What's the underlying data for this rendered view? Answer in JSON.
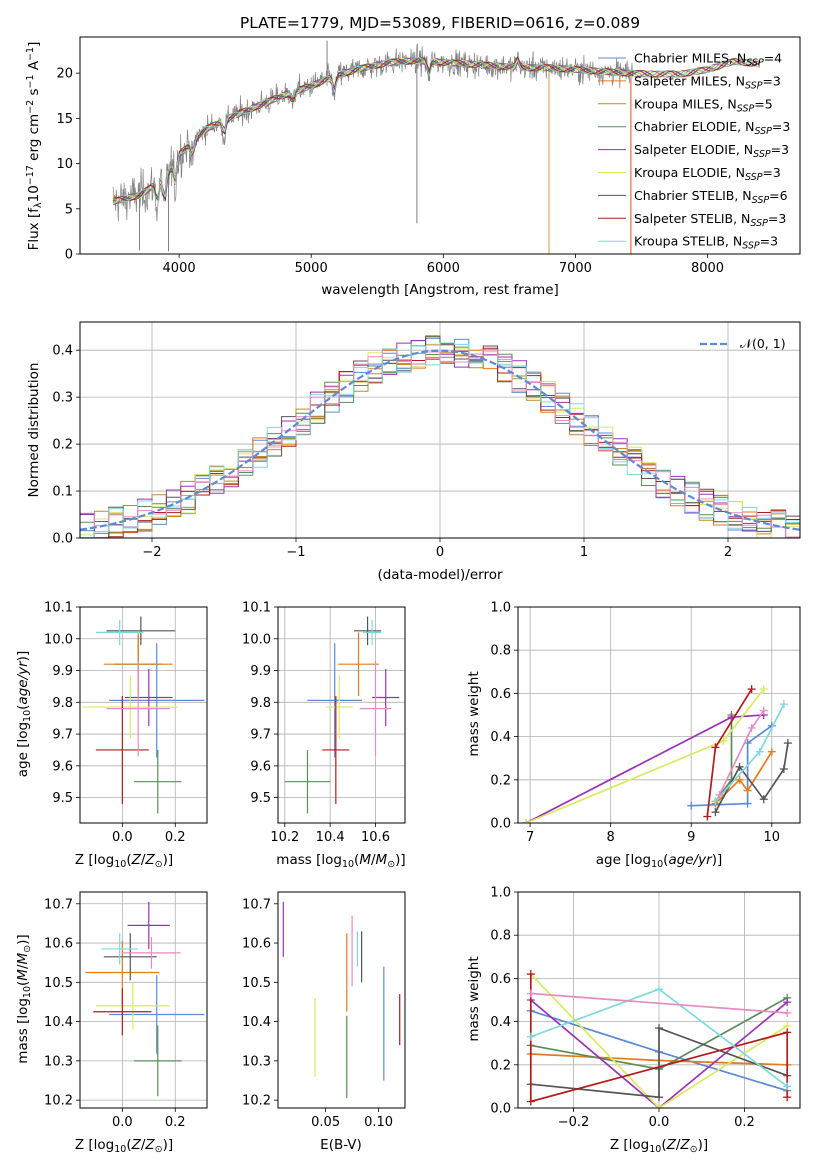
{
  "colors": {
    "Chabrier MILES": "#5b8bd6",
    "Salpeter MILES": "#e37b1a",
    "Kroupa MILES": "#bb8a2a",
    "Chabrier ELODIE": "#5a8d5a",
    "Salpeter ELODIE": "#9b31b8",
    "Kroupa ELODIE": "#d9ea62",
    "Chabrier STELIB": "#555555",
    "Salpeter STELIB": "#b31b1b",
    "Kroupa STELIB": "#7fd8de",
    "observed": "#808080",
    "normal": "#5b8bd6"
  },
  "chart_data": [
    {
      "id": "spectrum",
      "type": "line",
      "title": "PLATE=1779, MJD=53089, FIBERID=0616, z=0.089",
      "xlabel": "wavelength [Angstrom, rest frame]",
      "ylabel": "Flux [f_λ 10^-17 erg cm^-2 s^-1 A^-1]",
      "xlim": [
        3250,
        8700
      ],
      "ylim": [
        0,
        24
      ],
      "xticks": [
        4000,
        5000,
        6000,
        7000,
        8000
      ],
      "yticks": [
        0,
        5,
        10,
        15,
        20
      ],
      "grid": false,
      "legend_position": "right",
      "legend": [
        "Chabrier MILES, N_SSP=4",
        "Salpeter MILES, N_SSP=3",
        "Kroupa MILES, N_SSP=5",
        "Chabrier ELODIE, N_SSP=3",
        "Salpeter ELODIE, N_SSP=3",
        "Kroupa ELODIE, N_SSP=3",
        "Chabrier STELIB, N_SSP=6",
        "Salpeter STELIB, N_SSP=3",
        "Kroupa STELIB, N_SSP=3"
      ],
      "continuum": {
        "x": [
          3500,
          3700,
          3900,
          4000,
          4200,
          4400,
          4600,
          4800,
          5000,
          5200,
          5400,
          5600,
          5800,
          6000,
          6200,
          6400,
          6600,
          6800,
          7000,
          7200,
          7400,
          7600,
          7800,
          8000,
          8200,
          8400
        ],
        "y": [
          5.8,
          6.5,
          8.5,
          11.0,
          13.8,
          15.2,
          16.4,
          17.6,
          18.6,
          19.8,
          20.6,
          21.2,
          21.4,
          21.2,
          21.0,
          20.8,
          20.6,
          20.6,
          20.4,
          20.2,
          20.0,
          19.9,
          19.9,
          20.4,
          21.3,
          21.0
        ]
      },
      "spikes": [
        {
          "x": 5120,
          "y": 23.6
        },
        {
          "x": 5800,
          "y": 3.4
        },
        {
          "x": 6800,
          "y": 0.0
        },
        {
          "x": 7420,
          "y": 0.0
        },
        {
          "x": 3700,
          "y": 0.4
        },
        {
          "x": 3920,
          "y": 0.3
        }
      ]
    },
    {
      "id": "residuals",
      "type": "histogram",
      "xlabel": "(data-model)/error",
      "ylabel": "Normed distribution",
      "xlim": [
        -2.5,
        2.5
      ],
      "ylim": [
        0,
        0.46
      ],
      "xticks": [
        -2,
        -1,
        0,
        1,
        2
      ],
      "yticks": [
        0.0,
        0.1,
        0.2,
        0.3,
        0.4
      ],
      "grid": true,
      "legend_position": "top-right",
      "legend": [
        "N(0,1)"
      ],
      "bin_width": 0.1
    },
    {
      "id": "age_vs_Z",
      "type": "errorbar",
      "xlabel": "Z [log10(Z/Z☉)]",
      "ylabel": "age [log10(age/yr)]",
      "xlim": [
        -0.16,
        0.32
      ],
      "ylim": [
        9.42,
        10.1
      ],
      "xticks": [
        0.0,
        0.2
      ],
      "yticks": [
        9.5,
        9.6,
        9.7,
        9.8,
        9.9,
        10.0,
        10.1
      ],
      "grid": true,
      "points": [
        {
          "series": "Chabrier MILES",
          "x": 0.13,
          "xerr": 0.18,
          "y": 9.806,
          "yerr": 0.18
        },
        {
          "series": "Salpeter MILES",
          "x": 0.06,
          "xerr": 0.13,
          "y": 9.92,
          "yerr": 0.1
        },
        {
          "series": "Kroupa MILES",
          "x": 0.06,
          "xerr": 0.09,
          "y": 9.92,
          "yerr": 0.09
        },
        {
          "series": "Chabrier ELODIE",
          "x": 0.134,
          "xerr": 0.09,
          "y": 9.55,
          "yerr": 0.1
        },
        {
          "series": "Salpeter ELODIE",
          "x": 0.1,
          "xerr": 0.09,
          "y": 9.815,
          "yerr": 0.09
        },
        {
          "series": "Kroupa ELODIE",
          "x": 0.03,
          "xerr": 0.18,
          "y": 9.785,
          "yerr": 0.1
        },
        {
          "series": "Chabrier STELIB",
          "x": 0.07,
          "xerr": 0.13,
          "y": 10.025,
          "yerr": 0.045
        },
        {
          "series": "Salpeter STELIB",
          "x": 0.0,
          "xerr": 0.1,
          "y": 9.65,
          "yerr": 0.17
        },
        {
          "series": "Kroupa STELIB",
          "x": -0.01,
          "xerr": 0.09,
          "y": 10.02,
          "yerr": 0.04
        },
        {
          "series": "pink",
          "x": 0.06,
          "xerr": 0.12,
          "y": 9.78,
          "yerr": 0.15
        }
      ]
    },
    {
      "id": "age_vs_mass",
      "type": "errorbar",
      "xlabel": "mass [log10(M/M☉)]",
      "ylabel": "",
      "xlim": [
        10.17,
        10.73
      ],
      "ylim": [
        9.42,
        10.1
      ],
      "xticks": [
        10.2,
        10.4,
        10.6
      ],
      "yticks": [
        9.5,
        9.6,
        9.7,
        9.8,
        9.9,
        10.0,
        10.1
      ],
      "grid": true,
      "points": [
        {
          "series": "Chabrier MILES",
          "x": 10.42,
          "xerr": 0.12,
          "y": 9.806,
          "yerr": 0.18
        },
        {
          "series": "Salpeter MILES",
          "x": 10.525,
          "xerr": 0.09,
          "y": 9.92,
          "yerr": 0.1
        },
        {
          "series": "Chabrier ELODIE",
          "x": 10.3,
          "xerr": 0.1,
          "y": 9.55,
          "yerr": 0.1
        },
        {
          "series": "Salpeter ELODIE",
          "x": 10.645,
          "xerr": 0.06,
          "y": 9.815,
          "yerr": 0.09
        },
        {
          "series": "Kroupa ELODIE",
          "x": 10.44,
          "xerr": 0.06,
          "y": 9.785,
          "yerr": 0.1
        },
        {
          "series": "Chabrier STELIB",
          "x": 10.565,
          "xerr": 0.06,
          "y": 10.025,
          "yerr": 0.045
        },
        {
          "series": "Salpeter STELIB",
          "x": 10.425,
          "xerr": 0.06,
          "y": 9.65,
          "yerr": 0.17
        },
        {
          "series": "Kroupa STELIB",
          "x": 10.585,
          "xerr": 0.04,
          "y": 10.02,
          "yerr": 0.04
        },
        {
          "series": "pink",
          "x": 10.6,
          "xerr": 0.07,
          "y": 9.78,
          "yerr": 0.15
        }
      ]
    },
    {
      "id": "weight_vs_age",
      "type": "line",
      "xlabel": "age [log10(age/yr)]",
      "ylabel": "mass weight",
      "xlim": [
        6.85,
        10.35
      ],
      "ylim": [
        0,
        1
      ],
      "xticks": [
        7,
        8,
        9,
        10
      ],
      "yticks": [
        0.0,
        0.2,
        0.4,
        0.6,
        0.8,
        1.0
      ],
      "grid": true,
      "series": [
        {
          "name": "Chabrier MILES",
          "x": [
            9.0,
            9.7,
            9.7,
            10.0
          ],
          "y": [
            0.08,
            0.09,
            0.37,
            0.45
          ]
        },
        {
          "name": "Salpeter MILES",
          "x": [
            9.3,
            9.6,
            9.7,
            10.0
          ],
          "y": [
            0.09,
            0.2,
            0.15,
            0.33
          ]
        },
        {
          "name": "Chabrier ELODIE",
          "x": [
            9.3,
            9.5,
            9.5
          ],
          "y": [
            0.1,
            0.2,
            0.5
          ]
        },
        {
          "name": "Salpeter ELODIE",
          "x": [
            6.95,
            9.5,
            9.9
          ],
          "y": [
            0.0,
            0.49,
            0.5
          ]
        },
        {
          "name": "Kroupa ELODIE",
          "x": [
            6.95,
            9.4,
            9.9
          ],
          "y": [
            0.0,
            0.38,
            0.62
          ]
        },
        {
          "name": "Chabrier STELIB",
          "x": [
            9.3,
            9.6,
            9.9,
            10.15,
            10.2
          ],
          "y": [
            0.05,
            0.26,
            0.11,
            0.25,
            0.37
          ]
        },
        {
          "name": "Salpeter STELIB",
          "x": [
            9.2,
            9.3,
            9.75
          ],
          "y": [
            0.03,
            0.35,
            0.62
          ]
        },
        {
          "name": "Kroupa STELIB",
          "x": [
            9.3,
            9.85,
            10.15
          ],
          "y": [
            0.1,
            0.33,
            0.55
          ]
        },
        {
          "name": "pink",
          "x": [
            9.35,
            9.75,
            9.9
          ],
          "y": [
            0.13,
            0.44,
            0.52
          ]
        }
      ]
    },
    {
      "id": "mass_vs_Z",
      "type": "errorbar",
      "xlabel": "Z [log10(Z/Z☉)]",
      "ylabel": "mass [log10(M/M☉)]",
      "xlim": [
        -0.16,
        0.32
      ],
      "ylim": [
        10.18,
        10.73
      ],
      "xticks": [
        0.0,
        0.2
      ],
      "yticks": [
        10.2,
        10.3,
        10.4,
        10.5,
        10.6,
        10.7
      ],
      "grid": true,
      "points": [
        {
          "series": "Chabrier MILES",
          "x": 0.13,
          "xerr": 0.18,
          "y": 10.418,
          "yerr": 0.1
        },
        {
          "series": "Salpeter MILES",
          "x": 0.0,
          "xerr": 0.14,
          "y": 10.525,
          "yerr": 0.08
        },
        {
          "series": "Chabrier ELODIE",
          "x": 0.134,
          "xerr": 0.09,
          "y": 10.3,
          "yerr": 0.09
        },
        {
          "series": "Salpeter ELODIE",
          "x": 0.1,
          "xerr": 0.08,
          "y": 10.645,
          "yerr": 0.06
        },
        {
          "series": "Kroupa ELODIE",
          "x": 0.04,
          "xerr": 0.14,
          "y": 10.44,
          "yerr": 0.06
        },
        {
          "series": "Chabrier STELIB",
          "x": 0.03,
          "xerr": 0.1,
          "y": 10.565,
          "yerr": 0.06
        },
        {
          "series": "Salpeter STELIB",
          "x": 0.0,
          "xerr": 0.11,
          "y": 10.425,
          "yerr": 0.06
        },
        {
          "series": "Kroupa STELIB",
          "x": -0.01,
          "xerr": 0.07,
          "y": 10.585,
          "yerr": 0.04
        },
        {
          "series": "pink",
          "x": 0.11,
          "xerr": 0.11,
          "y": 10.575,
          "yerr": 0.04
        }
      ]
    },
    {
      "id": "mass_vs_ebv",
      "type": "errorbar",
      "xlabel": "E(B-V)",
      "ylabel": "",
      "xlim": [
        0.005,
        0.125
      ],
      "ylim": [
        10.18,
        10.73
      ],
      "xticks": [
        0.05,
        0.1
      ],
      "yticks": [
        10.2,
        10.3,
        10.4,
        10.5,
        10.6,
        10.7
      ],
      "grid": false,
      "points": [
        {
          "series": "Salpeter ELODIE",
          "x": 0.01,
          "y": 10.635,
          "yerr": 0.07
        },
        {
          "series": "Kroupa ELODIE",
          "x": 0.04,
          "y": 10.36,
          "yerr": 0.1
        },
        {
          "series": "Chabrier ELODIE",
          "x": 0.07,
          "y": 10.31,
          "yerr": 0.105
        },
        {
          "series": "Salpeter MILES",
          "x": 0.07,
          "y": 10.525,
          "yerr": 0.1
        },
        {
          "series": "pink",
          "x": 0.075,
          "y": 10.58,
          "yerr": 0.09
        },
        {
          "series": "Kroupa STELIB",
          "x": 0.08,
          "y": 10.585,
          "yerr": 0.045
        },
        {
          "series": "Chabrier STELIB",
          "x": 0.084,
          "y": 10.565,
          "yerr": 0.065
        },
        {
          "series": "Chabrier MILES",
          "x": 0.105,
          "y": 10.395,
          "yerr": 0.145
        },
        {
          "series": "Salpeter STELIB",
          "x": 0.12,
          "y": 10.405,
          "yerr": 0.065
        }
      ]
    },
    {
      "id": "weight_vs_Z",
      "type": "line",
      "xlabel": "Z [log10(Z/Z☉)]",
      "ylabel": "mass weight",
      "xlim": [
        -0.33,
        0.33
      ],
      "ylim": [
        0,
        1
      ],
      "xticks": [
        -0.2,
        0.0,
        0.2
      ],
      "yticks": [
        0.0,
        0.2,
        0.4,
        0.6,
        0.8,
        1.0
      ],
      "grid": true,
      "series": [
        {
          "name": "Chabrier MILES",
          "x": [
            -0.3,
            0.0,
            0.3
          ],
          "y": [
            0.45,
            0.26,
            0.08
          ]
        },
        {
          "name": "Salpeter MILES",
          "x": [
            -0.3,
            0.0,
            0.3
          ],
          "y": [
            0.25,
            0.22,
            0.2
          ]
        },
        {
          "name": "Chabrier ELODIE",
          "x": [
            -0.3,
            0.0,
            0.3
          ],
          "y": [
            0.29,
            0.18,
            0.51
          ]
        },
        {
          "name": "Salpeter ELODIE",
          "x": [
            -0.3,
            0.0,
            0.3
          ],
          "y": [
            0.5,
            0.0,
            0.49
          ]
        },
        {
          "name": "Kroupa ELODIE",
          "x": [
            -0.3,
            0.0,
            0.3
          ],
          "y": [
            0.62,
            0.0,
            0.38
          ]
        },
        {
          "name": "Chabrier STELIB",
          "x": [
            -0.3,
            0.0,
            0.0,
            0.3
          ],
          "y": [
            0.11,
            0.05,
            0.37,
            0.15
          ]
        },
        {
          "name": "Salpeter STELIB",
          "x": [
            -0.3,
            -0.3,
            0.3,
            0.3
          ],
          "y": [
            0.62,
            0.03,
            0.35,
            0.05
          ]
        },
        {
          "name": "Kroupa STELIB",
          "x": [
            -0.3,
            0.0,
            0.3
          ],
          "y": [
            0.33,
            0.55,
            0.1
          ]
        },
        {
          "name": "pink",
          "x": [
            -0.3,
            0.3
          ],
          "y": [
            0.53,
            0.44
          ]
        }
      ]
    }
  ]
}
